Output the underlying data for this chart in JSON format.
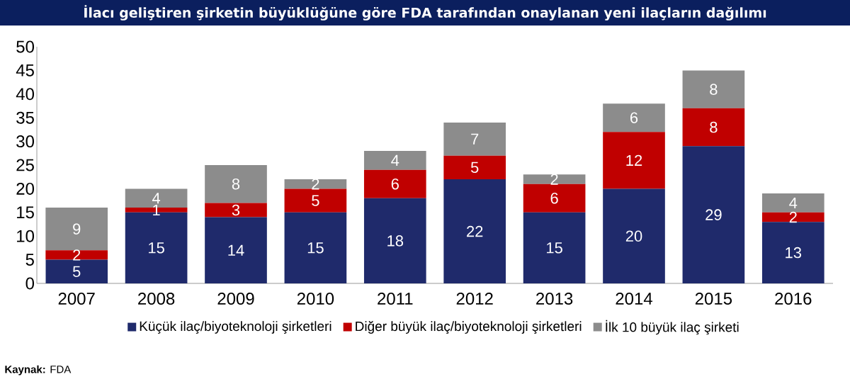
{
  "chart_data": {
    "type": "bar",
    "stacked": true,
    "title": "İlacı geliştiren şirketin büyüklüğüne göre FDA tarafından onaylanan yeni ilaçların dağılımı",
    "categories": [
      "2007",
      "2008",
      "2009",
      "2010",
      "2011",
      "2012",
      "2013",
      "2014",
      "2015",
      "2016"
    ],
    "series": [
      {
        "name": "Küçük ilaç/biyoteknoloji şirketleri",
        "color": "#1f2a6b",
        "values": [
          5,
          15,
          14,
          15,
          18,
          22,
          15,
          20,
          29,
          13
        ]
      },
      {
        "name": "Diğer büyük ilaç/biyoteknoloji şirketleri",
        "color": "#c00000",
        "values": [
          2,
          1,
          3,
          5,
          6,
          5,
          6,
          12,
          8,
          2
        ]
      },
      {
        "name": "İlk 10 büyük ilaç şirketi",
        "color": "#8c8c8c",
        "values": [
          9,
          4,
          8,
          2,
          4,
          7,
          2,
          6,
          8,
          4
        ]
      }
    ],
    "ylim": [
      0,
      50
    ],
    "yticks": [
      0,
      5,
      10,
      15,
      20,
      25,
      30,
      35,
      40,
      45,
      50
    ],
    "data_labels": true,
    "legend": "bottom",
    "annotations": [
      "**Kaynak:** FDA"
    ]
  }
}
